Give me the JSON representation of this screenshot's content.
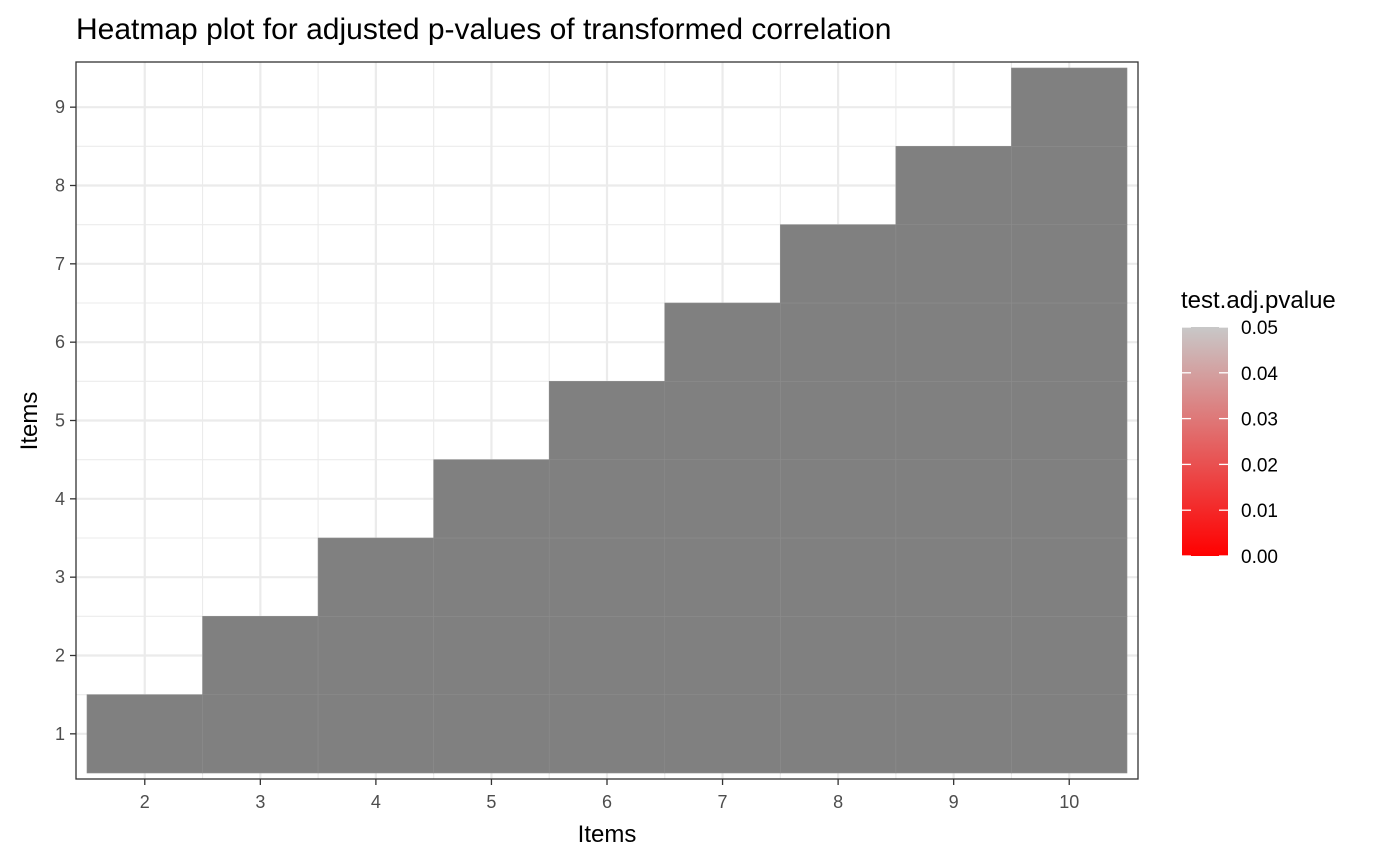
{
  "chart_data": {
    "type": "heatmap",
    "title": "Heatmap plot for adjusted p-values of transformed correlation",
    "xlabel": "Items",
    "ylabel": "Items",
    "x_ticks": [
      2,
      3,
      4,
      5,
      6,
      7,
      8,
      9,
      10
    ],
    "y_ticks": [
      1,
      2,
      3,
      4,
      5,
      6,
      7,
      8,
      9
    ],
    "xlim": [
      1.5,
      10.5
    ],
    "ylim": [
      0.5,
      9.5
    ],
    "grid": true,
    "cells_rule": "cells present for every pair (x, y) with x > y",
    "na_fill_color": "#808080",
    "legend": {
      "title": "test.adj.pvalue",
      "position": "right",
      "gradient_low": "#ff0000",
      "gradient_high": "#c8c8c8",
      "range": [
        0.0,
        0.05
      ],
      "labels": [
        "0.00",
        "0.01",
        "0.02",
        "0.03",
        "0.04",
        "0.05"
      ],
      "values": [
        0.0,
        0.01,
        0.02,
        0.03,
        0.04,
        0.05
      ]
    }
  }
}
